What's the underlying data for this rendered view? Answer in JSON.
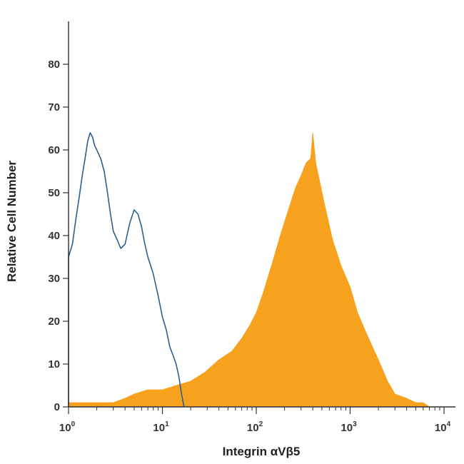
{
  "chart_data": {
    "type": "area",
    "xlabel": "Integrin αVβ5",
    "ylabel": "Relative Cell Number",
    "xscale": "log",
    "xlim": [
      1,
      10000
    ],
    "ylim": [
      0,
      90
    ],
    "x_ticks": [
      {
        "value": 1,
        "base": "10",
        "exp": "0"
      },
      {
        "value": 10,
        "base": "10",
        "exp": "1"
      },
      {
        "value": 100,
        "base": "10",
        "exp": "2"
      },
      {
        "value": 1000,
        "base": "10",
        "exp": "3"
      },
      {
        "value": 10000,
        "base": "10",
        "exp": "4"
      }
    ],
    "y_ticks": [
      "0",
      "10",
      "20",
      "30",
      "40",
      "50",
      "60",
      "70",
      "80"
    ],
    "grid": false,
    "legend": "none",
    "series": [
      {
        "style": "outline",
        "color": "#2b5f8e",
        "x": [
          1.0,
          1.1,
          1.2,
          1.3,
          1.4,
          1.5,
          1.6,
          1.7,
          1.8,
          1.9,
          2.0,
          2.2,
          2.4,
          2.6,
          2.8,
          3.0,
          3.3,
          3.6,
          4.0,
          4.5,
          5.0,
          5.5,
          6.0,
          6.5,
          7.0,
          7.5,
          8.0,
          9.0,
          10.0,
          11.0,
          12.0,
          13.0,
          14.0,
          15.0,
          16.0,
          17.0
        ],
        "y": [
          35,
          38,
          44,
          49,
          54,
          58,
          62,
          64,
          63,
          61,
          60,
          58,
          55,
          50,
          45,
          41,
          39,
          37,
          38,
          43,
          46,
          45,
          42,
          38,
          35,
          33,
          31,
          26,
          21,
          18,
          14,
          12,
          10,
          7,
          3,
          0
        ]
      },
      {
        "style": "filled",
        "color": "#f7a21e",
        "x": [
          1.0,
          1.5,
          2.0,
          3.0,
          4.0,
          5.0,
          7.0,
          10.0,
          14.0,
          20.0,
          28.0,
          40.0,
          55.0,
          70.0,
          85.0,
          100.0,
          120.0,
          150.0,
          180.0,
          220.0,
          260.0,
          300.0,
          340.0,
          380.0,
          400.0,
          430.0,
          480.0,
          550.0,
          650.0,
          800.0,
          1000.0,
          1200.0,
          1500.0,
          2000.0,
          2500.0,
          3000.0,
          4000.0,
          5000.0,
          6000.0,
          7000.0
        ],
        "y": [
          1,
          1,
          1,
          1,
          2,
          3,
          4,
          4,
          5,
          6,
          8,
          11,
          13,
          16,
          19,
          22,
          27,
          34,
          40,
          46,
          51,
          54,
          57,
          58,
          64,
          57,
          52,
          46,
          39,
          33,
          28,
          22,
          17,
          11,
          6,
          3,
          2,
          1,
          1,
          0
        ]
      }
    ]
  }
}
